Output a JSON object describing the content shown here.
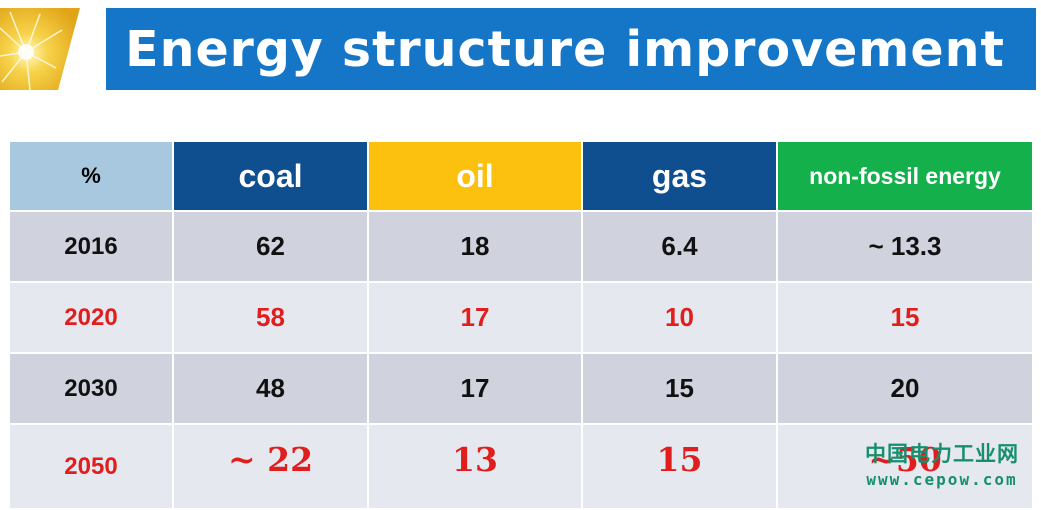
{
  "title": "Energy structure improvement",
  "table": {
    "headers": {
      "pct": "%",
      "coal": "coal",
      "oil": "oil",
      "gas": "gas",
      "non_fossil": "non-fossil energy"
    },
    "rows": [
      {
        "year": "2016",
        "coal": "62",
        "oil": "18",
        "gas": "6.4",
        "non_fossil": "~ 13.3"
      },
      {
        "year": "2020",
        "coal": "58",
        "oil": "17",
        "gas": "10",
        "non_fossil": "15"
      },
      {
        "year": "2030",
        "coal": "48",
        "oil": "17",
        "gas": "15",
        "non_fossil": "20"
      },
      {
        "year": "2050",
        "coal": "~ 22",
        "oil": "13",
        "gas": "15",
        "non_fossil": "~50"
      }
    ]
  },
  "watermark": {
    "name": "中国电力工业网",
    "url": "www.cepow.com"
  },
  "colors": {
    "title_bar": "#1575c6",
    "coal_header": "#0f4f8f",
    "oil_header": "#fcc10e",
    "gas_header": "#0f4f8f",
    "non_fossil_header": "#13b04c",
    "highlight_text": "#e01e1e"
  }
}
